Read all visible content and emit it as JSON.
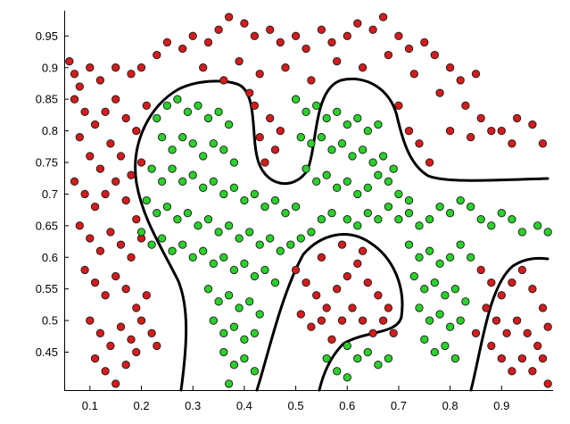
{
  "chart_data": {
    "type": "scatter",
    "title": "",
    "xlabel": "",
    "ylabel": "",
    "xlim": [
      0.05,
      1.0
    ],
    "ylim": [
      0.39,
      0.99
    ],
    "grid": false,
    "legend": "none",
    "x_ticks": [
      "0.1",
      "0.2",
      "0.3",
      "0.4",
      "0.5",
      "0.6",
      "0.7",
      "0.8",
      "0.9"
    ],
    "y_ticks": [
      "0.45",
      "0.5",
      "0.55",
      "0.6",
      "0.65",
      "0.7",
      "0.75",
      "0.8",
      "0.85",
      "0.9",
      "0.95"
    ],
    "colors": {
      "class_a": "#d41c1c",
      "class_b": "#2ad12a",
      "boundary": "#000000"
    },
    "series": [
      {
        "color": "#d41c1c",
        "points": [
          [
            0.06,
            0.91
          ],
          [
            0.07,
            0.89
          ],
          [
            0.08,
            0.87
          ],
          [
            0.1,
            0.9
          ],
          [
            0.12,
            0.88
          ],
          [
            0.15,
            0.9
          ],
          [
            0.18,
            0.89
          ],
          [
            0.2,
            0.9
          ],
          [
            0.23,
            0.92
          ],
          [
            0.25,
            0.94
          ],
          [
            0.28,
            0.93
          ],
          [
            0.3,
            0.95
          ],
          [
            0.33,
            0.94
          ],
          [
            0.35,
            0.96
          ],
          [
            0.37,
            0.98
          ],
          [
            0.4,
            0.97
          ],
          [
            0.42,
            0.95
          ],
          [
            0.45,
            0.96
          ],
          [
            0.47,
            0.94
          ],
          [
            0.5,
            0.95
          ],
          [
            0.52,
            0.93
          ],
          [
            0.55,
            0.96
          ],
          [
            0.57,
            0.94
          ],
          [
            0.6,
            0.95
          ],
          [
            0.62,
            0.97
          ],
          [
            0.65,
            0.96
          ],
          [
            0.67,
            0.98
          ],
          [
            0.7,
            0.95
          ],
          [
            0.72,
            0.93
          ],
          [
            0.75,
            0.94
          ],
          [
            0.77,
            0.92
          ],
          [
            0.8,
            0.9
          ],
          [
            0.82,
            0.88
          ],
          [
            0.85,
            0.89
          ],
          [
            0.32,
            0.9
          ],
          [
            0.36,
            0.88
          ],
          [
            0.39,
            0.91
          ],
          [
            0.43,
            0.89
          ],
          [
            0.48,
            0.9
          ],
          [
            0.53,
            0.88
          ],
          [
            0.58,
            0.91
          ],
          [
            0.63,
            0.9
          ],
          [
            0.68,
            0.92
          ],
          [
            0.73,
            0.89
          ],
          [
            0.78,
            0.86
          ],
          [
            0.83,
            0.84
          ],
          [
            0.86,
            0.82
          ],
          [
            0.9,
            0.8
          ],
          [
            0.93,
            0.82
          ],
          [
            0.96,
            0.81
          ],
          [
            0.98,
            0.78
          ],
          [
            0.92,
            0.78
          ],
          [
            0.88,
            0.8
          ],
          [
            0.8,
            0.8
          ],
          [
            0.84,
            0.79
          ],
          [
            0.76,
            0.75
          ],
          [
            0.74,
            0.78
          ],
          [
            0.72,
            0.8
          ],
          [
            0.7,
            0.84
          ],
          [
            0.42,
            0.84
          ],
          [
            0.45,
            0.82
          ],
          [
            0.43,
            0.79
          ],
          [
            0.46,
            0.77
          ],
          [
            0.44,
            0.75
          ],
          [
            0.47,
            0.8
          ],
          [
            0.41,
            0.86
          ],
          [
            0.07,
            0.85
          ],
          [
            0.09,
            0.83
          ],
          [
            0.11,
            0.81
          ],
          [
            0.13,
            0.83
          ],
          [
            0.15,
            0.85
          ],
          [
            0.17,
            0.82
          ],
          [
            0.19,
            0.8
          ],
          [
            0.21,
            0.84
          ],
          [
            0.08,
            0.79
          ],
          [
            0.1,
            0.76
          ],
          [
            0.12,
            0.74
          ],
          [
            0.14,
            0.78
          ],
          [
            0.16,
            0.76
          ],
          [
            0.18,
            0.73
          ],
          [
            0.2,
            0.75
          ],
          [
            0.07,
            0.72
          ],
          [
            0.09,
            0.7
          ],
          [
            0.11,
            0.68
          ],
          [
            0.13,
            0.7
          ],
          [
            0.15,
            0.72
          ],
          [
            0.17,
            0.69
          ],
          [
            0.19,
            0.66
          ],
          [
            0.08,
            0.65
          ],
          [
            0.1,
            0.63
          ],
          [
            0.12,
            0.61
          ],
          [
            0.14,
            0.64
          ],
          [
            0.16,
            0.62
          ],
          [
            0.18,
            0.6
          ],
          [
            0.2,
            0.63
          ],
          [
            0.09,
            0.58
          ],
          [
            0.11,
            0.56
          ],
          [
            0.13,
            0.54
          ],
          [
            0.15,
            0.57
          ],
          [
            0.17,
            0.55
          ],
          [
            0.19,
            0.52
          ],
          [
            0.21,
            0.54
          ],
          [
            0.1,
            0.5
          ],
          [
            0.12,
            0.48
          ],
          [
            0.14,
            0.46
          ],
          [
            0.16,
            0.49
          ],
          [
            0.18,
            0.47
          ],
          [
            0.2,
            0.5
          ],
          [
            0.22,
            0.48
          ],
          [
            0.11,
            0.44
          ],
          [
            0.13,
            0.42
          ],
          [
            0.15,
            0.4
          ],
          [
            0.17,
            0.43
          ],
          [
            0.19,
            0.45
          ],
          [
            0.23,
            0.46
          ],
          [
            0.5,
            0.58
          ],
          [
            0.52,
            0.56
          ],
          [
            0.54,
            0.54
          ],
          [
            0.56,
            0.52
          ],
          [
            0.58,
            0.55
          ],
          [
            0.6,
            0.57
          ],
          [
            0.62,
            0.59
          ],
          [
            0.64,
            0.56
          ],
          [
            0.66,
            0.54
          ],
          [
            0.68,
            0.52
          ],
          [
            0.51,
            0.51
          ],
          [
            0.53,
            0.49
          ],
          [
            0.55,
            0.5
          ],
          [
            0.57,
            0.47
          ],
          [
            0.59,
            0.5
          ],
          [
            0.61,
            0.52
          ],
          [
            0.63,
            0.5
          ],
          [
            0.65,
            0.48
          ],
          [
            0.67,
            0.5
          ],
          [
            0.69,
            0.48
          ],
          [
            0.55,
            0.6
          ],
          [
            0.59,
            0.62
          ],
          [
            0.63,
            0.61
          ],
          [
            0.86,
            0.58
          ],
          [
            0.88,
            0.56
          ],
          [
            0.9,
            0.54
          ],
          [
            0.92,
            0.56
          ],
          [
            0.94,
            0.58
          ],
          [
            0.96,
            0.55
          ],
          [
            0.98,
            0.52
          ],
          [
            0.87,
            0.52
          ],
          [
            0.89,
            0.5
          ],
          [
            0.91,
            0.48
          ],
          [
            0.93,
            0.5
          ],
          [
            0.95,
            0.48
          ],
          [
            0.97,
            0.46
          ],
          [
            0.99,
            0.49
          ],
          [
            0.88,
            0.46
          ],
          [
            0.9,
            0.44
          ],
          [
            0.92,
            0.42
          ],
          [
            0.94,
            0.44
          ],
          [
            0.96,
            0.42
          ],
          [
            0.98,
            0.44
          ],
          [
            0.85,
            0.48
          ],
          [
            0.99,
            0.4
          ]
        ]
      },
      {
        "color": "#2ad12a",
        "points": [
          [
            0.23,
            0.82
          ],
          [
            0.25,
            0.84
          ],
          [
            0.27,
            0.85
          ],
          [
            0.29,
            0.83
          ],
          [
            0.31,
            0.84
          ],
          [
            0.33,
            0.82
          ],
          [
            0.35,
            0.83
          ],
          [
            0.37,
            0.81
          ],
          [
            0.24,
            0.79
          ],
          [
            0.26,
            0.77
          ],
          [
            0.28,
            0.79
          ],
          [
            0.3,
            0.78
          ],
          [
            0.32,
            0.76
          ],
          [
            0.34,
            0.78
          ],
          [
            0.36,
            0.77
          ],
          [
            0.38,
            0.75
          ],
          [
            0.22,
            0.74
          ],
          [
            0.24,
            0.72
          ],
          [
            0.26,
            0.74
          ],
          [
            0.28,
            0.72
          ],
          [
            0.3,
            0.73
          ],
          [
            0.32,
            0.71
          ],
          [
            0.34,
            0.72
          ],
          [
            0.36,
            0.7
          ],
          [
            0.38,
            0.71
          ],
          [
            0.4,
            0.69
          ],
          [
            0.42,
            0.7
          ],
          [
            0.44,
            0.68
          ],
          [
            0.46,
            0.69
          ],
          [
            0.48,
            0.67
          ],
          [
            0.5,
            0.68
          ],
          [
            0.21,
            0.69
          ],
          [
            0.23,
            0.67
          ],
          [
            0.25,
            0.68
          ],
          [
            0.27,
            0.66
          ],
          [
            0.29,
            0.67
          ],
          [
            0.31,
            0.65
          ],
          [
            0.33,
            0.66
          ],
          [
            0.35,
            0.64
          ],
          [
            0.37,
            0.65
          ],
          [
            0.39,
            0.63
          ],
          [
            0.41,
            0.64
          ],
          [
            0.43,
            0.62
          ],
          [
            0.45,
            0.63
          ],
          [
            0.47,
            0.61
          ],
          [
            0.49,
            0.62
          ],
          [
            0.51,
            0.63
          ],
          [
            0.53,
            0.64
          ],
          [
            0.55,
            0.66
          ],
          [
            0.57,
            0.67
          ],
          [
            0.2,
            0.64
          ],
          [
            0.22,
            0.62
          ],
          [
            0.24,
            0.63
          ],
          [
            0.26,
            0.61
          ],
          [
            0.28,
            0.62
          ],
          [
            0.3,
            0.6
          ],
          [
            0.32,
            0.61
          ],
          [
            0.34,
            0.59
          ],
          [
            0.36,
            0.6
          ],
          [
            0.38,
            0.58
          ],
          [
            0.4,
            0.59
          ],
          [
            0.42,
            0.57
          ],
          [
            0.44,
            0.58
          ],
          [
            0.46,
            0.56
          ],
          [
            0.33,
            0.55
          ],
          [
            0.35,
            0.53
          ],
          [
            0.37,
            0.54
          ],
          [
            0.39,
            0.52
          ],
          [
            0.41,
            0.53
          ],
          [
            0.43,
            0.51
          ],
          [
            0.34,
            0.5
          ],
          [
            0.36,
            0.48
          ],
          [
            0.38,
            0.49
          ],
          [
            0.4,
            0.47
          ],
          [
            0.42,
            0.48
          ],
          [
            0.36,
            0.45
          ],
          [
            0.38,
            0.43
          ],
          [
            0.4,
            0.44
          ],
          [
            0.42,
            0.42
          ],
          [
            0.37,
            0.4
          ],
          [
            0.5,
            0.85
          ],
          [
            0.52,
            0.83
          ],
          [
            0.54,
            0.84
          ],
          [
            0.56,
            0.82
          ],
          [
            0.58,
            0.83
          ],
          [
            0.6,
            0.81
          ],
          [
            0.62,
            0.82
          ],
          [
            0.64,
            0.8
          ],
          [
            0.66,
            0.81
          ],
          [
            0.51,
            0.79
          ],
          [
            0.53,
            0.78
          ],
          [
            0.55,
            0.79
          ],
          [
            0.57,
            0.77
          ],
          [
            0.59,
            0.78
          ],
          [
            0.61,
            0.76
          ],
          [
            0.63,
            0.77
          ],
          [
            0.65,
            0.75
          ],
          [
            0.67,
            0.76
          ],
          [
            0.69,
            0.74
          ],
          [
            0.52,
            0.74
          ],
          [
            0.54,
            0.72
          ],
          [
            0.56,
            0.73
          ],
          [
            0.58,
            0.71
          ],
          [
            0.6,
            0.72
          ],
          [
            0.62,
            0.7
          ],
          [
            0.64,
            0.71
          ],
          [
            0.66,
            0.73
          ],
          [
            0.68,
            0.72
          ],
          [
            0.7,
            0.7
          ],
          [
            0.72,
            0.69
          ],
          [
            0.6,
            0.66
          ],
          [
            0.62,
            0.65
          ],
          [
            0.64,
            0.67
          ],
          [
            0.66,
            0.66
          ],
          [
            0.68,
            0.68
          ],
          [
            0.7,
            0.66
          ],
          [
            0.72,
            0.67
          ],
          [
            0.74,
            0.65
          ],
          [
            0.76,
            0.66
          ],
          [
            0.78,
            0.68
          ],
          [
            0.8,
            0.67
          ],
          [
            0.82,
            0.69
          ],
          [
            0.84,
            0.68
          ],
          [
            0.86,
            0.66
          ],
          [
            0.88,
            0.65
          ],
          [
            0.9,
            0.67
          ],
          [
            0.92,
            0.66
          ],
          [
            0.94,
            0.64
          ],
          [
            0.97,
            0.65
          ],
          [
            0.99,
            0.64
          ],
          [
            0.72,
            0.62
          ],
          [
            0.74,
            0.6
          ],
          [
            0.76,
            0.61
          ],
          [
            0.78,
            0.59
          ],
          [
            0.8,
            0.6
          ],
          [
            0.82,
            0.62
          ],
          [
            0.84,
            0.6
          ],
          [
            0.73,
            0.57
          ],
          [
            0.75,
            0.55
          ],
          [
            0.77,
            0.56
          ],
          [
            0.79,
            0.54
          ],
          [
            0.81,
            0.55
          ],
          [
            0.83,
            0.53
          ],
          [
            0.74,
            0.52
          ],
          [
            0.76,
            0.5
          ],
          [
            0.78,
            0.51
          ],
          [
            0.8,
            0.49
          ],
          [
            0.82,
            0.5
          ],
          [
            0.75,
            0.47
          ],
          [
            0.77,
            0.45
          ],
          [
            0.79,
            0.46
          ],
          [
            0.81,
            0.44
          ],
          [
            0.6,
            0.46
          ],
          [
            0.62,
            0.44
          ],
          [
            0.64,
            0.45
          ],
          [
            0.66,
            0.43
          ],
          [
            0.58,
            0.42
          ],
          [
            0.6,
            0.41
          ],
          [
            0.56,
            0.44
          ],
          [
            0.68,
            0.44
          ]
        ]
      }
    ]
  }
}
